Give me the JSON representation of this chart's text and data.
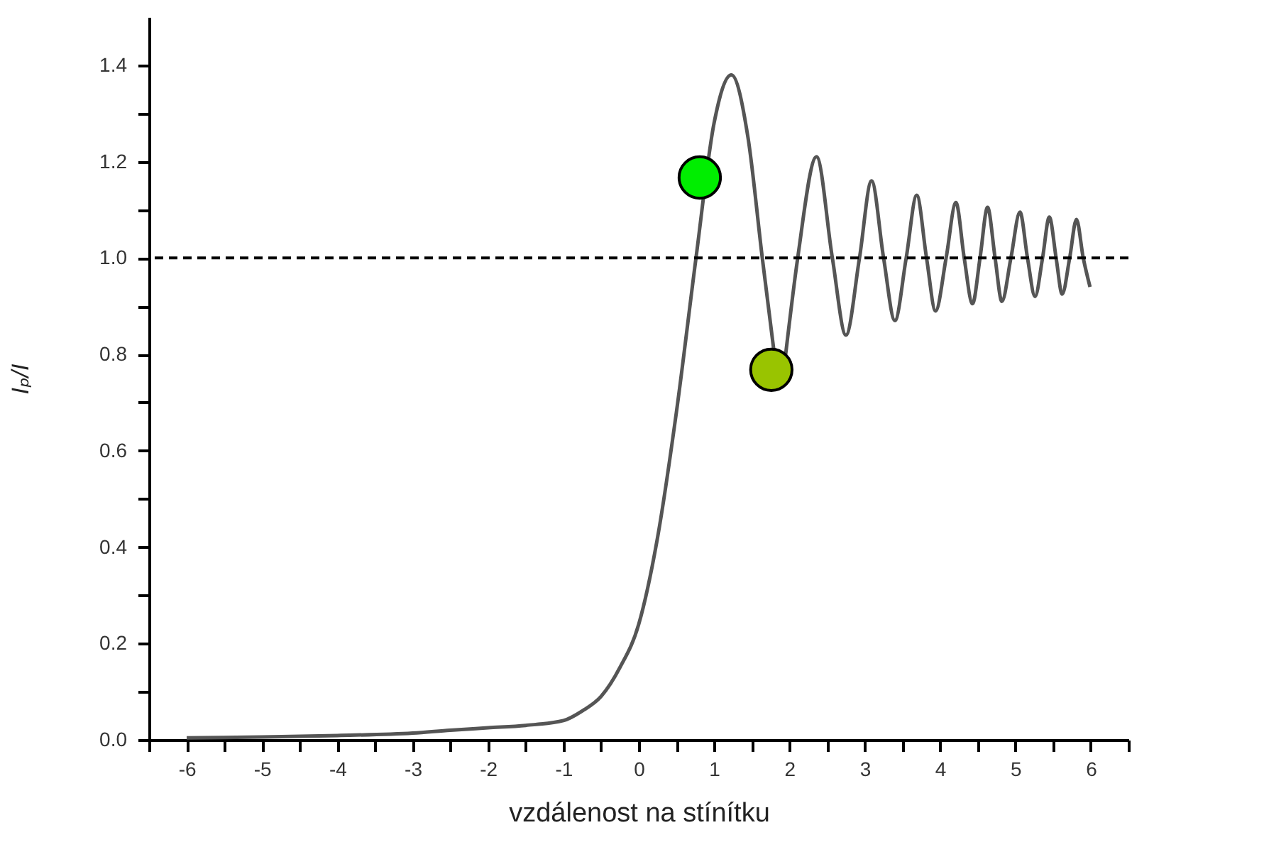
{
  "chart_data": {
    "type": "line",
    "xlabel": "vzdálenost na stínítku",
    "ylabel": "Iₚ/I",
    "xlim": [
      -6.5,
      6.5
    ],
    "ylim": [
      0,
      1.5
    ],
    "xticks": [
      {
        "value": -6.5,
        "label": null
      },
      -6,
      {
        "value": -5.5,
        "label": null
      },
      -5,
      {
        "value": -4.5,
        "label": null
      },
      -4,
      {
        "value": -3.5,
        "label": null
      },
      -3,
      {
        "value": -2.5,
        "label": null
      },
      -2,
      {
        "value": -1.5,
        "label": null
      },
      -1,
      {
        "value": -0.5,
        "label": null
      },
      0,
      {
        "value": 0.5,
        "label": null
      },
      1,
      {
        "value": 1.5,
        "label": null
      },
      2,
      {
        "value": 2.5,
        "label": null
      },
      3,
      {
        "value": 3.5,
        "label": null
      },
      4,
      {
        "value": 4.5,
        "label": null
      },
      5,
      {
        "value": 5.5,
        "label": null
      },
      6,
      {
        "value": 6.5,
        "label": null
      }
    ],
    "yticks": [
      {
        "value": 0,
        "label": "0.0"
      },
      {
        "value": 0.1,
        "label": null
      },
      0.2,
      {
        "value": 0.3,
        "label": null
      },
      0.4,
      {
        "value": 0.5,
        "label": null
      },
      0.6,
      {
        "value": 0.7,
        "label": null
      },
      0.8,
      {
        "value": 0.9,
        "label": null
      },
      {
        "value": 1,
        "label": "1.0"
      },
      {
        "value": 1.1,
        "label": null
      },
      1.2,
      {
        "value": 1.3,
        "label": null
      },
      1.4
    ],
    "grid": false,
    "ref_lines": [
      {
        "axis": "y",
        "value": 1,
        "color": "#000000",
        "line_style": "dashed"
      }
    ],
    "series": [
      {
        "color": "#555555",
        "line_style": "solid",
        "marker": "none",
        "x": [
          -6,
          -5,
          -4,
          -3,
          -2.5,
          -2,
          -1.5,
          -1,
          -0.75,
          -0.5,
          -0.25,
          0,
          0.25,
          0.5,
          0.76,
          1,
          1.23,
          1.45,
          1.64,
          1.8,
          1.87,
          1.95,
          2.11,
          2.36,
          2.57,
          2.75,
          2.93,
          3.09,
          3.25,
          3.4,
          3.55,
          3.69,
          3.82,
          3.94,
          4.08,
          4.21,
          4.32,
          4.43,
          4.53,
          4.63,
          4.73,
          4.82,
          4.94,
          5.06,
          5.16,
          5.26,
          5.36,
          5.45,
          5.54,
          5.62,
          5.72,
          5.81,
          5.9,
          5.99
        ],
        "values": [
          0.004,
          0.006,
          0.009,
          0.014,
          0.02,
          0.025,
          0.03,
          0.04,
          0.06,
          0.09,
          0.15,
          0.24,
          0.42,
          0.68,
          1.0,
          1.28,
          1.38,
          1.25,
          1.0,
          0.8,
          null,
          0.8,
          1.0,
          1.21,
          1.0,
          0.84,
          1.0,
          1.16,
          1.0,
          0.87,
          1.0,
          1.13,
          1.0,
          0.89,
          1.0,
          1.115,
          1.0,
          0.905,
          1.0,
          1.105,
          1.0,
          0.91,
          1.0,
          1.095,
          1.0,
          0.92,
          1.0,
          1.085,
          1.0,
          0.925,
          1.0,
          1.08,
          1.0,
          0.94
        ]
      },
      {
        "type": "scatter",
        "colors": [
          "#00ee00",
          "#99c400"
        ],
        "marker": "circle",
        "x": [
          0.81,
          1.76
        ],
        "values": [
          1.167,
          0.768
        ]
      }
    ]
  }
}
